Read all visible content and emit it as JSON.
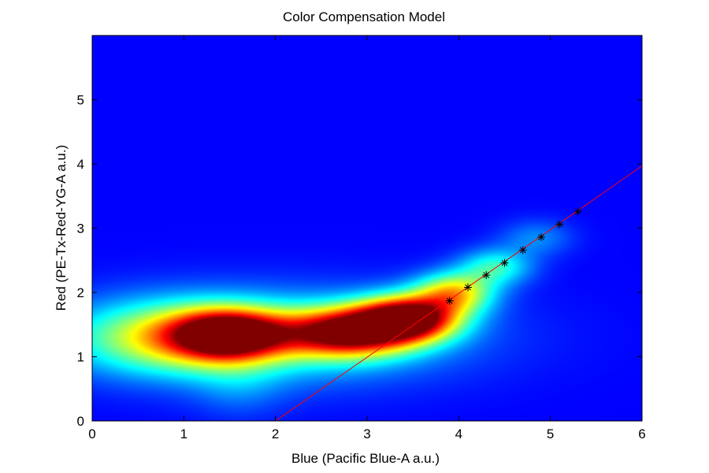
{
  "chart_data": {
    "type": "heatmap",
    "title": "Color Compensation Model",
    "xlabel": "Blue (Pacific Blue-A  a.u.)",
    "ylabel": "Red (PE-Tx-Red-YG-A a.u.)",
    "xlim": [
      0,
      6
    ],
    "ylim": [
      0,
      6
    ],
    "xticks": [
      0,
      1,
      2,
      3,
      4,
      5,
      6
    ],
    "yticks": [
      0,
      1,
      2,
      3,
      4,
      5
    ],
    "colormap": "jet",
    "background_color": "#00008f",
    "grid": false,
    "density_clusters": [
      {
        "x": 1.5,
        "y": 1.35,
        "sx": 0.42,
        "sy": 0.26,
        "w": 0.85
      },
      {
        "x": 0.9,
        "y": 1.3,
        "sx": 0.75,
        "sy": 0.38,
        "w": 0.45
      },
      {
        "x": 2.8,
        "y": 1.38,
        "sx": 0.48,
        "sy": 0.26,
        "w": 0.88
      },
      {
        "x": 3.45,
        "y": 1.6,
        "sx": 0.38,
        "sy": 0.24,
        "w": 1.0
      },
      {
        "x": 3.95,
        "y": 2.0,
        "sx": 0.3,
        "sy": 0.22,
        "w": 0.55
      },
      {
        "x": 4.4,
        "y": 2.4,
        "sx": 0.28,
        "sy": 0.2,
        "w": 0.32
      },
      {
        "x": 4.85,
        "y": 2.85,
        "sx": 0.28,
        "sy": 0.2,
        "w": 0.15
      },
      {
        "x": 2.0,
        "y": 1.3,
        "sx": 1.4,
        "sy": 0.5,
        "w": 0.3
      },
      {
        "x": 1.6,
        "y": 0.55,
        "sx": 0.35,
        "sy": 0.35,
        "w": 0.1
      }
    ],
    "fit_line": {
      "color": "#ff0000",
      "points": [
        [
          2.0,
          0.0
        ],
        [
          6.0,
          3.97
        ]
      ]
    },
    "star_markers": {
      "color": "#000000",
      "points": [
        [
          3.9,
          1.87
        ],
        [
          4.1,
          2.08
        ],
        [
          4.3,
          2.27
        ],
        [
          4.5,
          2.46
        ],
        [
          4.7,
          2.66
        ],
        [
          4.9,
          2.86
        ],
        [
          5.1,
          3.06
        ],
        [
          5.3,
          3.26
        ]
      ]
    }
  }
}
